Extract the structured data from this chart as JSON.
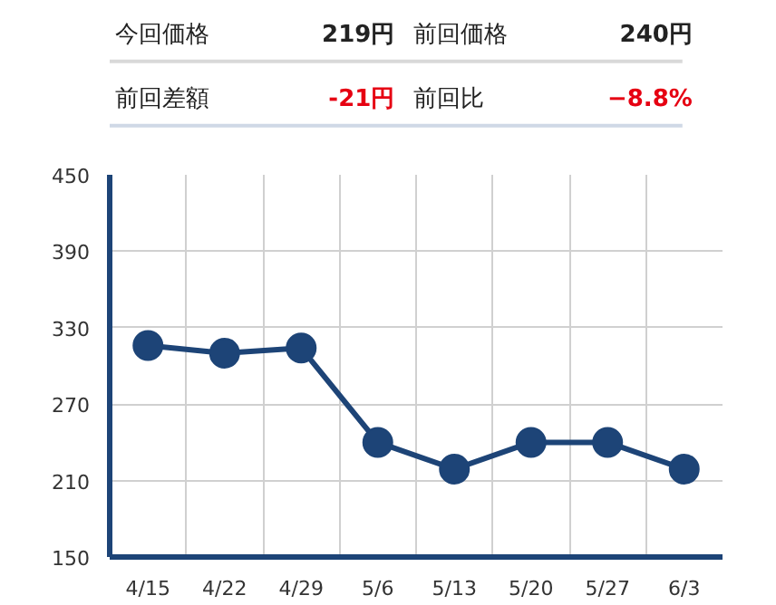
{
  "chart_data": {
    "type": "line",
    "annotations": [
      "今回価格",
      "219円",
      "前回価格",
      "240円",
      "前回差額",
      "-21円",
      "前回比",
      "−8.8%"
    ],
    "categories": [
      "4/15",
      "4/22",
      "4/29",
      "5/6",
      "5/13",
      "5/20",
      "5/27",
      "6/3"
    ],
    "series": [
      {
        "color": "#1d4477",
        "values": [
          316,
          310,
          314,
          240,
          219,
          240,
          240,
          219
        ]
      }
    ],
    "ylim": [
      150,
      450
    ],
    "yticks": [
      150,
      210,
      270,
      330,
      390,
      450
    ],
    "grid": true,
    "marker": "circle",
    "line_style": "solid"
  }
}
